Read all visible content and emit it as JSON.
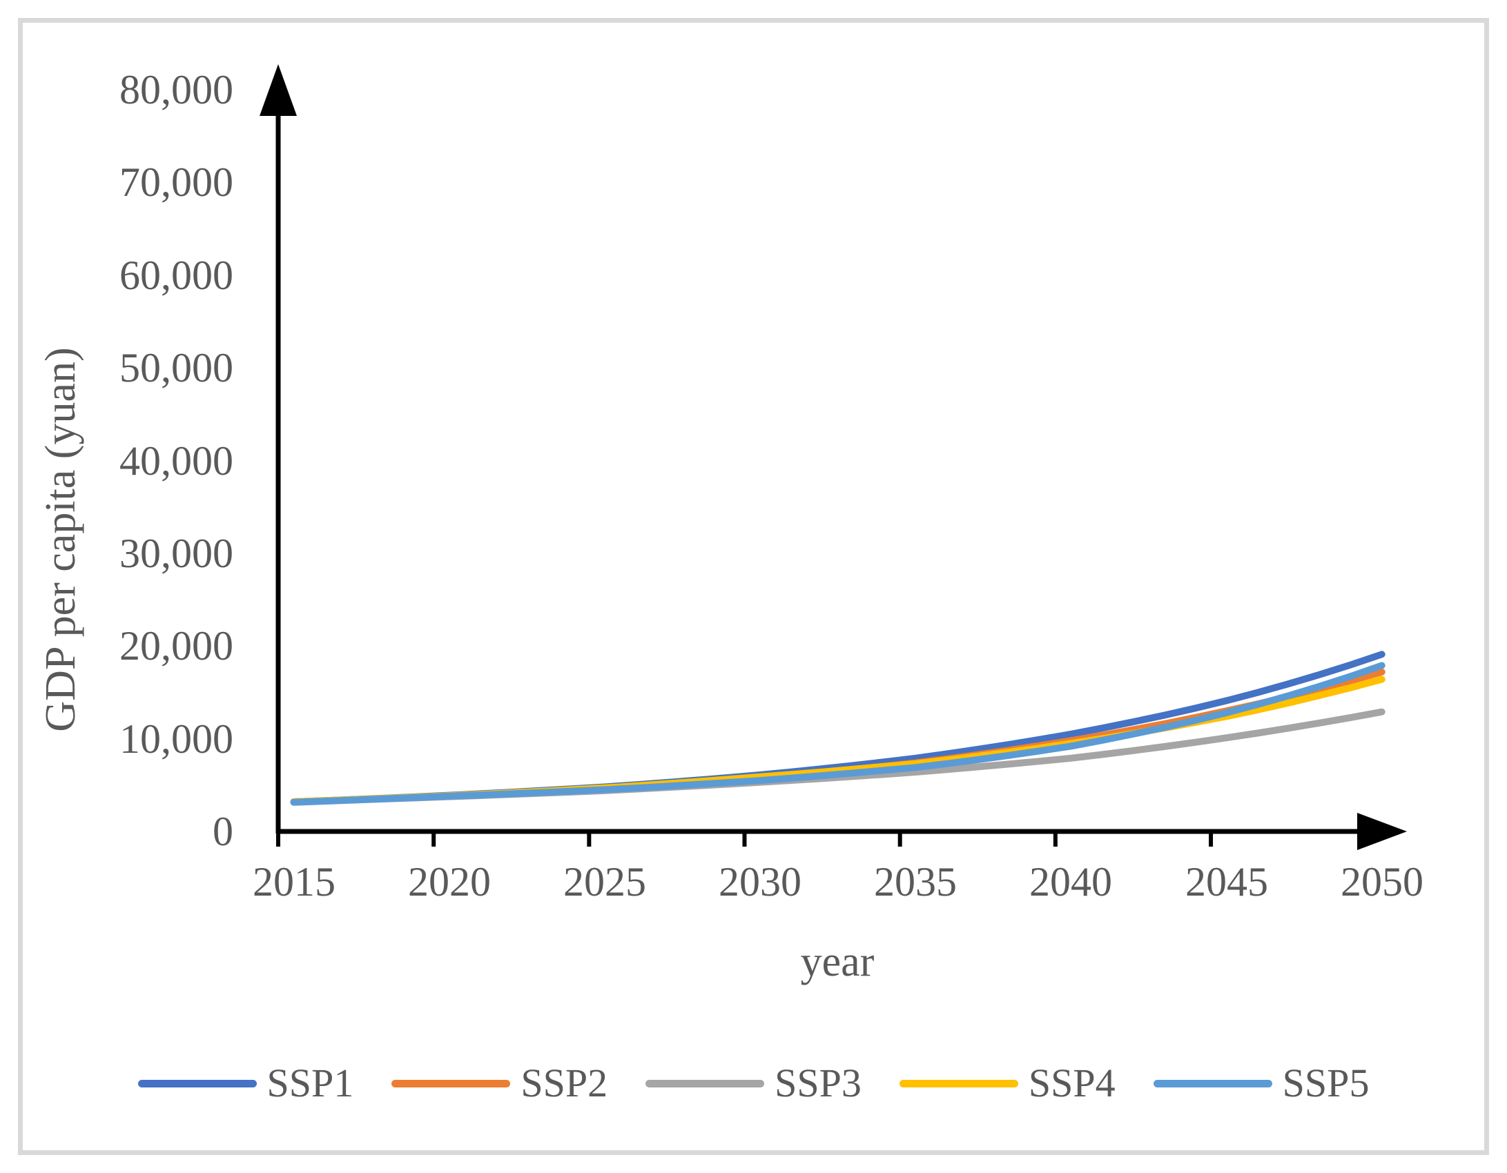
{
  "chart_data": {
    "type": "line",
    "title": "",
    "xlabel": "year",
    "ylabel": "GDP per capita (yuan)",
    "x": [
      2015,
      2020,
      2025,
      2030,
      2035,
      2040,
      2045,
      2050
    ],
    "x_tick_labels": [
      "2015",
      "2020",
      "2025",
      "2030",
      "2035",
      "2040",
      "2045",
      "2050"
    ],
    "y_ticks": [
      0,
      10000,
      20000,
      30000,
      40000,
      50000,
      60000,
      70000,
      80000
    ],
    "ylim": [
      0,
      80000
    ],
    "xlim_years": [
      2015,
      2050
    ],
    "grid": false,
    "legend_position": "bottom",
    "axis_color": "#000000",
    "tick_label_color": "#595959",
    "series": [
      {
        "name": "SSP1",
        "color": "#4472C4",
        "values": [
          3200,
          3900,
          4800,
          6100,
          7900,
          10500,
          14100,
          19100
        ]
      },
      {
        "name": "SSP2",
        "color": "#ED7D31",
        "values": [
          3200,
          3850,
          4650,
          5800,
          7400,
          9800,
          13000,
          17200
        ]
      },
      {
        "name": "SSP3",
        "color": "#A5A5A5",
        "values": [
          3200,
          3750,
          4400,
          5300,
          6400,
          7900,
          10100,
          12900
        ]
      },
      {
        "name": "SSP4",
        "color": "#FFC000",
        "values": [
          3200,
          3850,
          4700,
          5900,
          7300,
          9500,
          12400,
          16400
        ]
      },
      {
        "name": "SSP5",
        "color": "#5B9BD5",
        "values": [
          3150,
          3800,
          4500,
          5500,
          6900,
          9200,
          12800,
          17900
        ]
      }
    ]
  }
}
